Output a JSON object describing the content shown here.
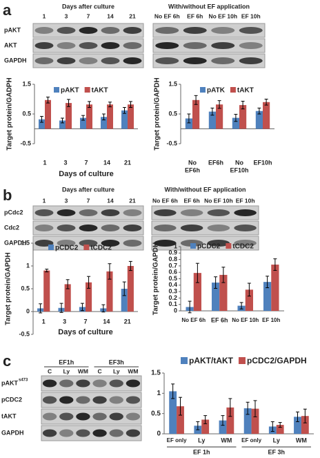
{
  "panel_labels": [
    "a",
    "b",
    "c"
  ],
  "blots": [
    {
      "header": "Days after culture",
      "lanes": [
        "1",
        "3",
        "7",
        "14",
        "21"
      ],
      "rows": [
        "pAKT",
        "AKT",
        "GAPDH"
      ]
    },
    {
      "header": "With/without EF application",
      "lanes": [
        "No EF 6h",
        "EF 6h",
        "No EF 10h",
        "EF 10h"
      ]
    },
    {
      "header": "Days after culture",
      "lanes": [
        "1",
        "3",
        "7",
        "14",
        "21"
      ],
      "rows": [
        "pCdc2",
        "Cdc2",
        "GAPDH"
      ]
    },
    {
      "header": "With/without EF application",
      "lanes": [
        "No EF 6h",
        "EF 6h",
        "No EF 10h",
        "EF 10h"
      ]
    },
    {
      "groups": [
        "EF1h",
        "EF3h"
      ],
      "lanes": [
        "C",
        "Ly",
        "WM",
        "C",
        "Ly",
        "WM"
      ],
      "rows": [
        "pAKT",
        "pCDC2",
        "tAKT",
        "GAPDH"
      ],
      "row_superscript": "s473"
    }
  ],
  "chart_data": [
    {
      "type": "bar",
      "y_label": "Target protein/GADPH",
      "x_label": "Days of culture",
      "categories": [
        "1",
        "3",
        "7",
        "14",
        "21"
      ],
      "series": [
        {
          "name": "pAKT",
          "color": "#4f81bd",
          "values": [
            0.32,
            0.28,
            0.37,
            0.4,
            0.62
          ],
          "errors": [
            0.1,
            0.08,
            0.08,
            0.1,
            0.1
          ]
        },
        {
          "name": "tAKT",
          "color": "#c0504d",
          "values": [
            0.97,
            0.87,
            0.82,
            0.82,
            0.82
          ],
          "errors": [
            0.1,
            0.12,
            0.1,
            0.08,
            0.1
          ]
        }
      ],
      "ylim": [
        -0.5,
        1.5
      ],
      "yticks": [
        -0.5,
        0.5,
        1.5
      ]
    },
    {
      "type": "bar",
      "y_label": "Target protein/GAPDH",
      "categories": [
        [
          "No",
          "EF6h"
        ],
        [
          "EF6h"
        ],
        [
          "No",
          "EF10h"
        ],
        [
          "EF10h"
        ]
      ],
      "series": [
        {
          "name": "pATK",
          "color": "#4f81bd",
          "values": [
            0.35,
            0.58,
            0.37,
            0.6
          ],
          "errors": [
            0.15,
            0.12,
            0.12,
            0.1
          ]
        },
        {
          "name": "tAKT",
          "color": "#c0504d",
          "values": [
            0.97,
            0.82,
            0.8,
            0.9
          ],
          "errors": [
            0.15,
            0.13,
            0.13,
            0.1
          ]
        }
      ],
      "ylim": [
        -0.5,
        1.5
      ],
      "yticks": [
        -0.5,
        0.5,
        1.5
      ]
    },
    {
      "type": "bar",
      "y_label": "Target protein/GAPDH",
      "x_label": "Days of culture",
      "categories": [
        "1",
        "3",
        "7",
        "14",
        "21"
      ],
      "series": [
        {
          "name": "pCDC2",
          "color": "#4f81bd",
          "values": [
            0.07,
            0.08,
            0.1,
            0.07,
            0.5
          ],
          "errors": [
            0.1,
            0.1,
            0.08,
            0.08,
            0.15
          ]
        },
        {
          "name": "tCDC2",
          "color": "#c0504d",
          "values": [
            0.9,
            0.6,
            0.64,
            0.88,
            1.0
          ],
          "errors": [
            0.03,
            0.1,
            0.13,
            0.17,
            0.1
          ]
        }
      ],
      "ylim": [
        -0.5,
        1.5
      ],
      "yticks": [
        -0.5,
        0,
        0.5,
        1,
        1.5
      ]
    },
    {
      "type": "bar",
      "y_label": "Target protein/GAPDH",
      "categories": [
        "No EF 6h",
        "EF 6h",
        "No EF 10h",
        "EF 10h"
      ],
      "series": [
        {
          "name": "pCDC2",
          "color": "#4f81bd",
          "values": [
            0.06,
            0.44,
            0.08,
            0.45
          ],
          "errors": [
            0.09,
            0.09,
            0.05,
            0.09
          ]
        },
        {
          "name": "tCDC2",
          "color": "#c0504d",
          "values": [
            0.59,
            0.56,
            0.33,
            0.72
          ],
          "errors": [
            0.15,
            0.12,
            0.1,
            0.09
          ]
        }
      ],
      "ylim": [
        0,
        1
      ],
      "yticks": [
        0,
        0.1,
        0.2,
        0.3,
        0.4,
        0.5,
        0.6,
        0.7,
        0.8,
        0.9,
        1
      ]
    },
    {
      "type": "bar",
      "categories": [
        "EF only",
        "Ly",
        "WM",
        "EF only",
        "Ly",
        "WM"
      ],
      "group_labels": [
        "EF 1h",
        "EF 3h"
      ],
      "series": [
        {
          "name": "pAKT/tAKT",
          "color": "#4f81bd",
          "values": [
            1.05,
            0.2,
            0.33,
            0.63,
            0.18,
            0.42
          ],
          "errors": [
            0.18,
            0.1,
            0.12,
            0.15,
            0.12,
            0.12
          ]
        },
        {
          "name": "pCDC2/GAPDH",
          "color": "#c0504d",
          "values": [
            0.68,
            0.35,
            0.65,
            0.62,
            0.22,
            0.44
          ],
          "errors": [
            0.22,
            0.1,
            0.22,
            0.2,
            0.06,
            0.17
          ]
        }
      ],
      "ylim": [
        0,
        1.5
      ],
      "yticks": [
        0,
        0.5,
        1,
        1.5
      ]
    }
  ]
}
